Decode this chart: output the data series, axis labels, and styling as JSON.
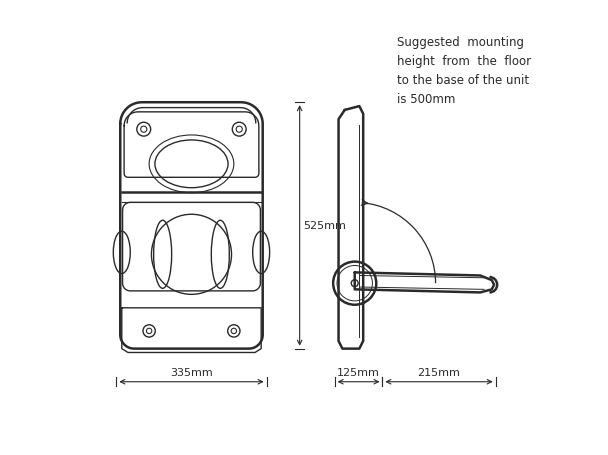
{
  "bg_color": "#ffffff",
  "lc": "#2a2a2a",
  "lw_outer": 1.8,
  "lw_inner": 1.0,
  "lw_dim": 0.8,
  "annotation": "Suggested  mounting\nheight  from  the  floor\nto the base of the unit\nis 500mm",
  "dim_335": "335mm",
  "dim_525": "525mm",
  "dim_125": "125mm",
  "dim_215": "215mm",
  "font_size": 8.0
}
